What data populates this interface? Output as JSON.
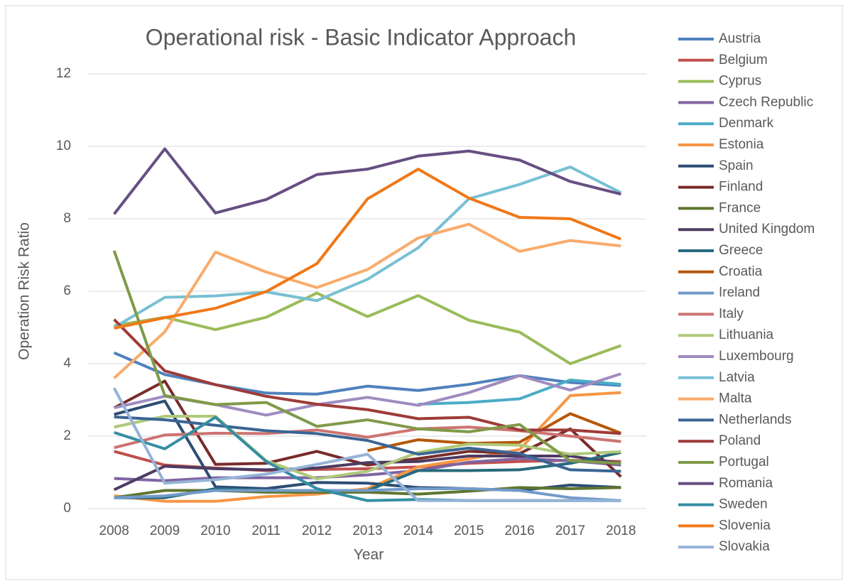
{
  "chart_data": {
    "type": "line",
    "title": "Operational risk - Basic Indicator Approach",
    "x_label": "Year",
    "y_label": "Operation Risk Ratio",
    "categories": [
      "2008",
      "2009",
      "2010",
      "2011",
      "2012",
      "2013",
      "2014",
      "2015",
      "2016",
      "2017",
      "2018"
    ],
    "ylim": [
      0,
      12
    ],
    "yticks": [
      0,
      2,
      4,
      6,
      8,
      10,
      12
    ],
    "grid": true,
    "legend": "right",
    "series": [
      {
        "name": "Austria",
        "color": "#4f81bd",
        "values": [
          4.3,
          3.7,
          3.42,
          3.19,
          3.16,
          3.38,
          3.26,
          3.43,
          3.67,
          3.48,
          3.4
        ]
      },
      {
        "name": "Belgium",
        "color": "#c0504d",
        "values": [
          1.58,
          1.2,
          1.12,
          1.05,
          1.08,
          1.1,
          1.15,
          1.25,
          1.3,
          1.33,
          1.3
        ]
      },
      {
        "name": "Cyprus",
        "color": "#9bbb59",
        "values": [
          5.05,
          5.28,
          4.94,
          5.28,
          5.95,
          5.3,
          5.88,
          5.2,
          4.87,
          4.0,
          4.5
        ]
      },
      {
        "name": "Czech Republic",
        "color": "#8064a2",
        "values": [
          0.83,
          0.77,
          0.85,
          0.85,
          0.85,
          0.93,
          1.05,
          1.28,
          1.38,
          1.32,
          1.2
        ]
      },
      {
        "name": "Denmark",
        "color": "#4bacc6",
        "values": [
          null,
          null,
          null,
          null,
          null,
          null,
          2.88,
          2.93,
          3.03,
          3.55,
          3.43
        ]
      },
      {
        "name": "Estonia",
        "color": "#f79646",
        "values": [
          0.35,
          0.2,
          0.2,
          0.33,
          0.4,
          0.55,
          1.15,
          1.37,
          1.63,
          3.12,
          3.2
        ]
      },
      {
        "name": "Spain",
        "color": "#2c4d75",
        "values": [
          2.6,
          2.97,
          0.6,
          0.55,
          0.72,
          0.7,
          0.58,
          0.55,
          0.5,
          0.65,
          0.58
        ]
      },
      {
        "name": "Finland",
        "color": "#772c2a",
        "values": [
          2.78,
          3.52,
          1.22,
          1.25,
          1.58,
          1.2,
          1.38,
          1.58,
          1.52,
          2.2,
          0.88
        ]
      },
      {
        "name": "France",
        "color": "#5f7530",
        "values": [
          0.3,
          0.5,
          0.5,
          0.45,
          0.45,
          0.45,
          0.4,
          0.48,
          0.58,
          0.55,
          0.58
        ]
      },
      {
        "name": "United Kingdom",
        "color": "#4d3b62",
        "values": [
          0.52,
          1.17,
          1.1,
          1.07,
          1.12,
          1.27,
          1.3,
          1.45,
          1.45,
          1.45,
          1.25
        ]
      },
      {
        "name": "Greece",
        "color": "#276a7c",
        "values": [
          0.3,
          0.3,
          0.55,
          0.5,
          0.5,
          0.5,
          1.05,
          1.05,
          1.07,
          1.25,
          1.55
        ]
      },
      {
        "name": "Croatia",
        "color": "#b65708",
        "values": [
          null,
          null,
          null,
          null,
          null,
          1.6,
          1.9,
          1.8,
          1.83,
          2.62,
          2.08
        ]
      },
      {
        "name": "Ireland",
        "color": "#729aca",
        "values": [
          0.3,
          0.35,
          0.5,
          0.5,
          0.5,
          0.5,
          0.55,
          0.55,
          0.5,
          0.3,
          0.22
        ]
      },
      {
        "name": "Italy",
        "color": "#cd7371",
        "values": [
          1.68,
          2.03,
          2.08,
          2.07,
          2.17,
          1.97,
          2.2,
          2.25,
          2.15,
          2.0,
          1.85
        ]
      },
      {
        "name": "Lithuania",
        "color": "#afc97a",
        "values": [
          2.25,
          2.55,
          2.55,
          1.32,
          0.82,
          1.03,
          1.55,
          1.78,
          1.75,
          1.5,
          1.57
        ]
      },
      {
        "name": "Luxembourg",
        "color": "#a08bc1",
        "values": [
          2.78,
          3.1,
          2.87,
          2.58,
          2.87,
          3.07,
          2.85,
          3.2,
          3.67,
          3.27,
          3.72
        ]
      },
      {
        "name": "Latvia",
        "color": "#78c0d4",
        "values": [
          5.0,
          5.83,
          5.87,
          5.98,
          5.74,
          6.33,
          7.2,
          8.55,
          8.95,
          9.43,
          8.72
        ]
      },
      {
        "name": "Malta",
        "color": "#f9ab6b",
        "values": [
          3.6,
          4.88,
          7.08,
          6.53,
          6.1,
          6.6,
          7.47,
          7.85,
          7.1,
          7.4,
          7.25
        ]
      },
      {
        "name": "Netherlands",
        "color": "#3a6594",
        "values": [
          2.53,
          2.45,
          2.3,
          2.15,
          2.07,
          1.88,
          1.5,
          1.67,
          1.52,
          1.07,
          1.03
        ]
      },
      {
        "name": "Poland",
        "color": "#9e3b38",
        "values": [
          5.22,
          3.8,
          3.42,
          3.1,
          2.88,
          2.73,
          2.48,
          2.52,
          2.17,
          2.17,
          2.07
        ]
      },
      {
        "name": "Portugal",
        "color": "#7f9a48",
        "values": [
          7.12,
          3.12,
          2.87,
          2.93,
          2.27,
          2.45,
          2.2,
          2.12,
          2.32,
          1.32,
          1.25
        ]
      },
      {
        "name": "Romania",
        "color": "#664f82",
        "values": [
          8.13,
          9.93,
          8.16,
          8.53,
          9.22,
          9.37,
          9.73,
          9.87,
          9.62,
          9.03,
          8.68
        ]
      },
      {
        "name": "Sweden",
        "color": "#358ea4",
        "values": [
          2.1,
          1.65,
          2.52,
          1.3,
          0.55,
          0.22,
          0.25,
          0.22,
          0.22,
          0.22,
          0.22
        ]
      },
      {
        "name": "Slovenia",
        "color": "#f07818",
        "values": [
          4.98,
          5.27,
          5.53,
          5.99,
          6.76,
          8.55,
          9.37,
          8.57,
          8.04,
          8.0,
          7.44
        ]
      },
      {
        "name": "Slovakia",
        "color": "#95b3d7",
        "values": [
          3.33,
          0.7,
          0.8,
          0.95,
          1.22,
          1.5,
          0.22,
          0.22,
          0.22,
          0.22,
          0.22
        ]
      }
    ]
  }
}
